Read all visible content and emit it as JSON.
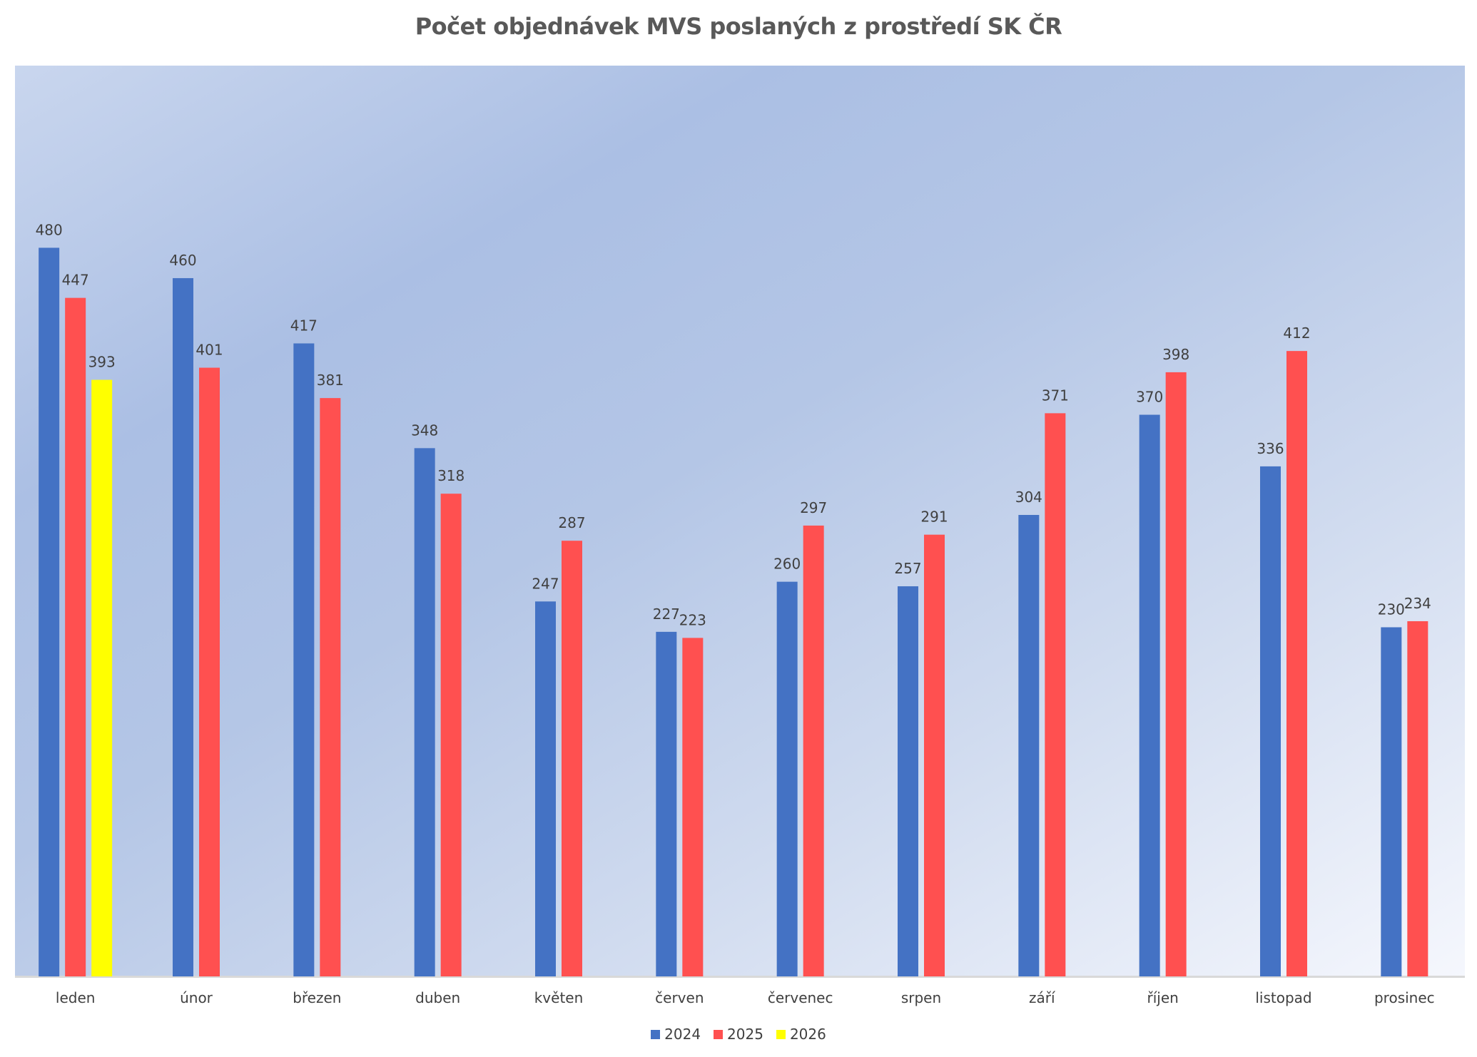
{
  "chart_data": {
    "type": "bar",
    "title": "Počet objednávek MVS poslaných z prostředí SK ČR",
    "xlabel": "",
    "ylabel": "",
    "ylim": [
      0,
      600
    ],
    "grid": false,
    "legend_position": "bottom",
    "categories": [
      "leden",
      "únor",
      "březen",
      "duben",
      "květen",
      "červen",
      "červenec",
      "srpen",
      "září",
      "říjen",
      "listopad",
      "prosinec"
    ],
    "series": [
      {
        "name": "2024",
        "color": "#4472c4",
        "values": [
          480,
          460,
          417,
          348,
          247,
          227,
          260,
          257,
          304,
          370,
          336,
          230
        ]
      },
      {
        "name": "2025",
        "color": "#ff5050",
        "values": [
          447,
          401,
          381,
          318,
          287,
          223,
          297,
          291,
          371,
          398,
          412,
          234
        ]
      },
      {
        "name": "2026",
        "color": "#ffff00",
        "values": [
          393,
          null,
          null,
          null,
          null,
          null,
          null,
          null,
          null,
          null,
          null,
          null
        ]
      }
    ]
  }
}
